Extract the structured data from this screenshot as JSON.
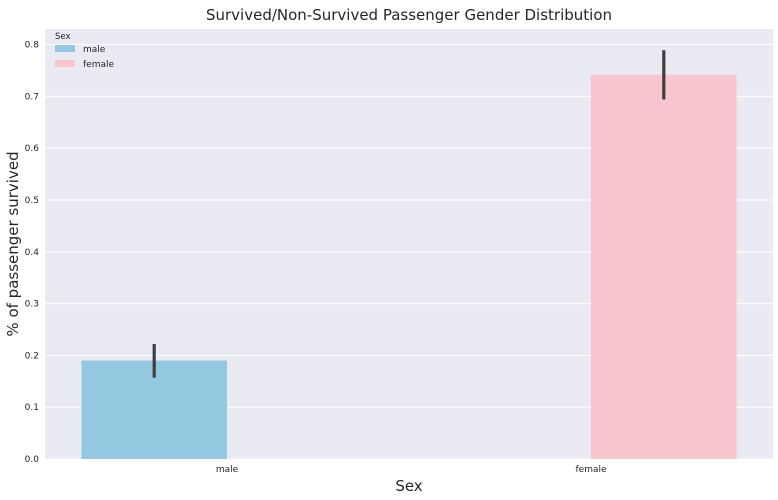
{
  "chart_data": {
    "type": "bar",
    "title": "Survived/Non-Survived Passenger Gender Distribution",
    "xlabel": "Sex",
    "ylabel": "% of passenger survived",
    "categories": [
      "male",
      "female"
    ],
    "series": [
      {
        "name": "male",
        "values": [
          0.19,
          null
        ],
        "error_low": [
          0.157,
          null
        ],
        "error_high": [
          0.222,
          null
        ],
        "color": "#92c9e0"
      },
      {
        "name": "female",
        "values": [
          null,
          0.742
        ],
        "error_low": [
          null,
          0.694
        ],
        "error_high": [
          null,
          0.789
        ],
        "color": "#f7c6cf"
      }
    ],
    "ylim": [
      0,
      0.83
    ],
    "yticks": [
      0.0,
      0.1,
      0.2,
      0.3,
      0.4,
      0.5,
      0.6,
      0.7,
      0.8
    ],
    "ytick_labels": [
      "0.0",
      "0.1",
      "0.2",
      "0.3",
      "0.4",
      "0.5",
      "0.6",
      "0.7",
      "0.8"
    ],
    "grid": true,
    "legend": {
      "title": "Sex",
      "placement": "top-left",
      "entries": [
        "male",
        "female"
      ]
    },
    "colors": {
      "background": "#eaeaf2",
      "grid": "#ffffff",
      "error_bar": "#3f3f3f"
    }
  }
}
